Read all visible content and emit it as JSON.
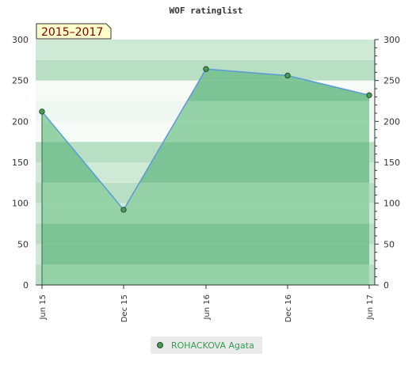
{
  "chart_data": {
    "type": "area",
    "title": "WOF ratinglist",
    "badge": "2015–2017",
    "categories": [
      "Jun 15",
      "Dec 15",
      "Jun 16",
      "Dec 16",
      "Jun 17"
    ],
    "series": [
      {
        "name": "ROHACKOVA Agata",
        "values": [
          212,
          92,
          264,
          256,
          232
        ]
      }
    ],
    "ylim": [
      0,
      300
    ],
    "yticks": [
      0,
      50,
      100,
      150,
      200,
      250,
      300
    ],
    "grid": false,
    "legend": "bottom",
    "colors": {
      "line": "#5b9bd5",
      "marker_fill": "#4b9a5a",
      "marker_stroke": "#1e4d28",
      "fill_dark": "#7cc495",
      "fill_light": "#96d2a8",
      "bg_dark": "#b8dfc4",
      "bg_light": "#eef8f1",
      "legend_text": "#2e9e4e",
      "badge_bg": "#ffffcc",
      "badge_text": "#7a0000"
    }
  }
}
